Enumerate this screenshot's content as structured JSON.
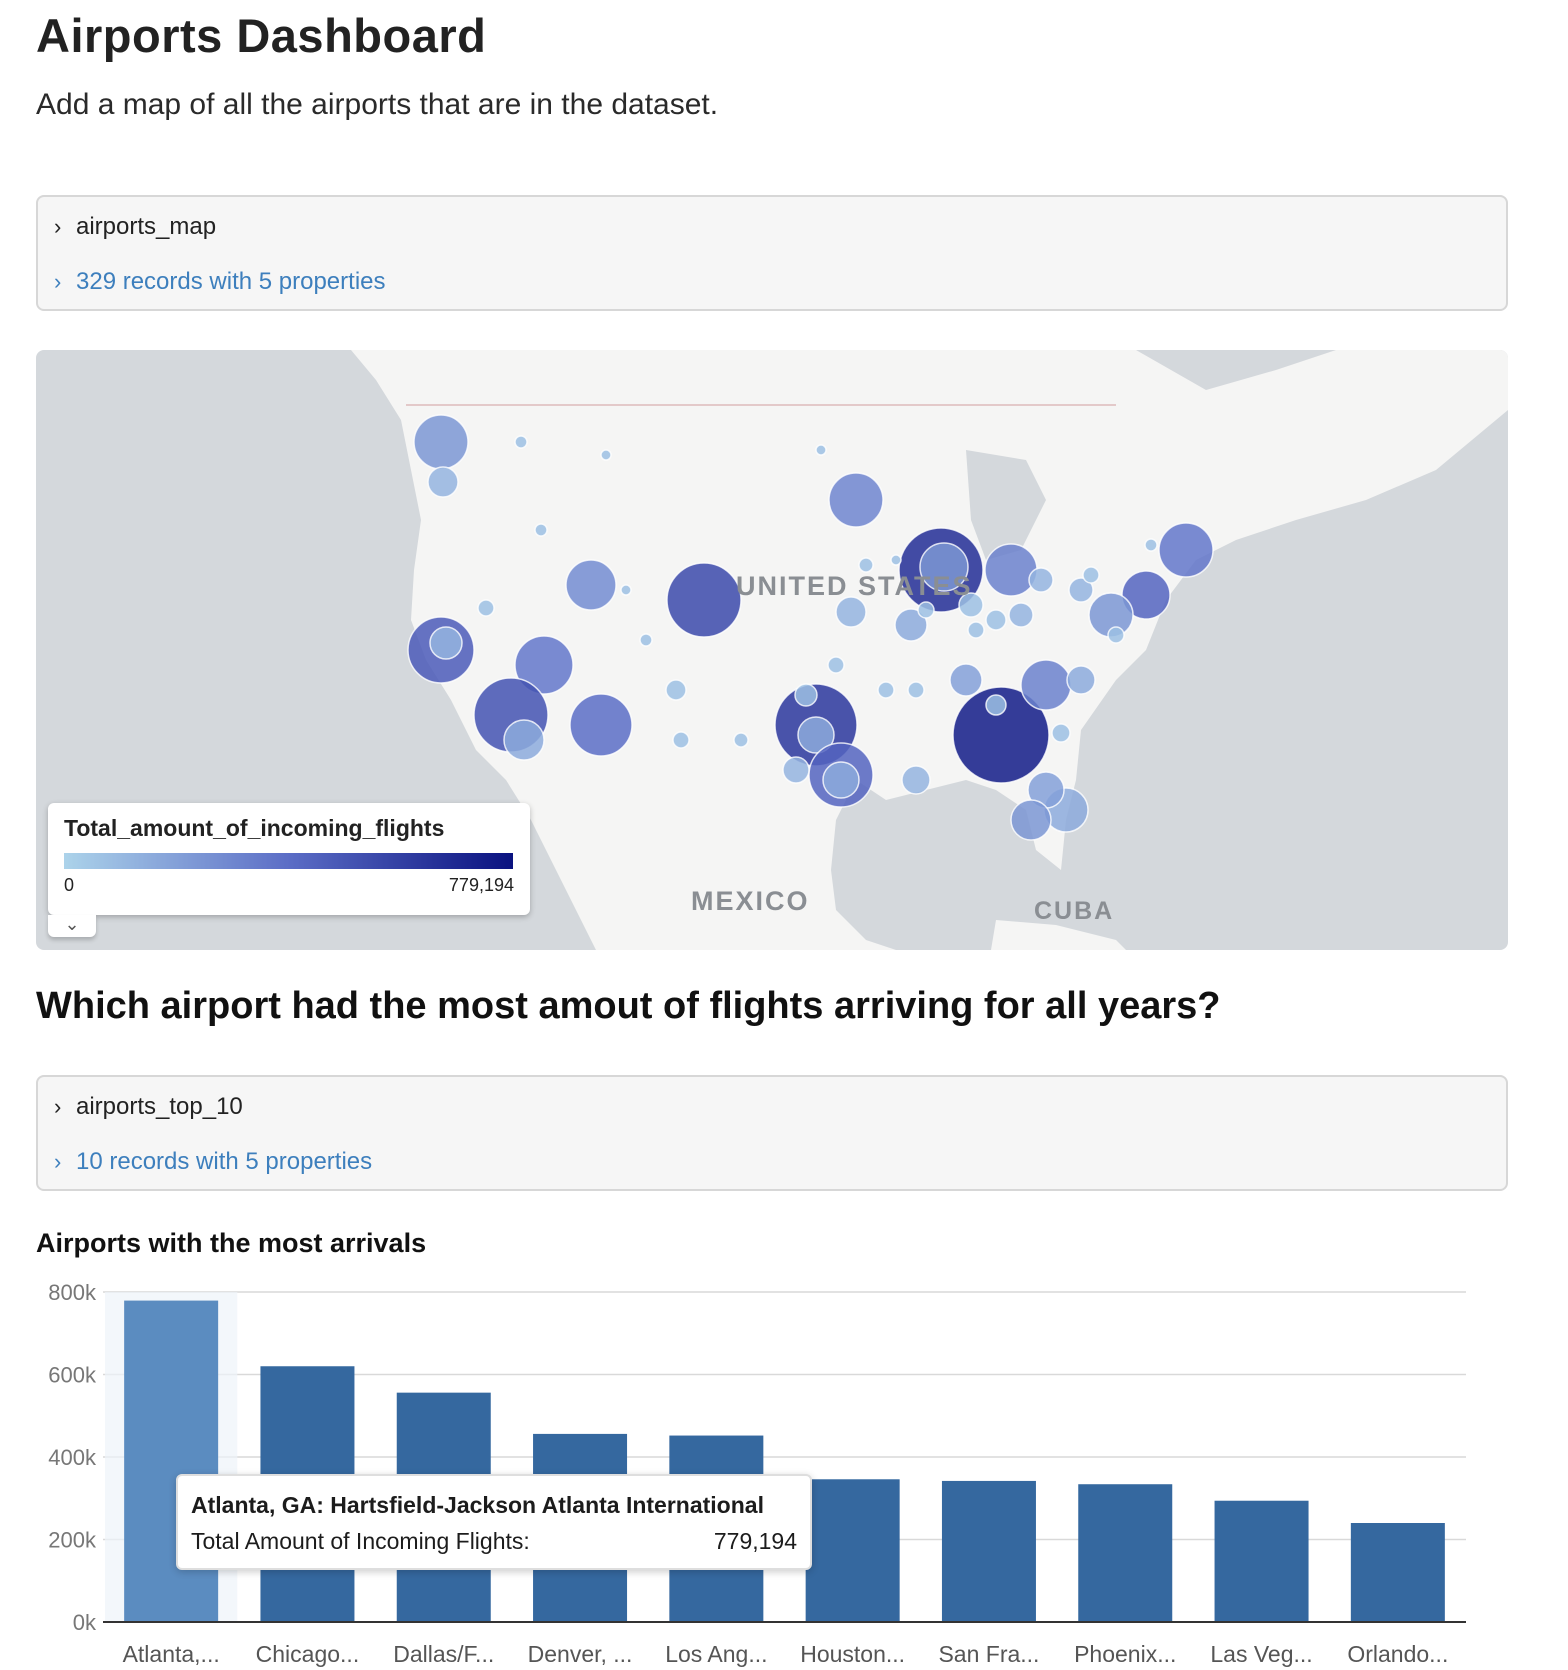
{
  "header": {
    "title": "Airports Dashboard",
    "subtitle": "Add a map of all the airports that are in the dataset."
  },
  "cells": {
    "map_cell": {
      "name": "airports_map",
      "records": "329 records with 5 properties"
    },
    "top10_cell": {
      "name": "airports_top_10",
      "records": "10 records with 5 properties"
    }
  },
  "map": {
    "labels": {
      "country": "UNITED STATES",
      "mexico": "MEXICO",
      "cuba": "CUBA"
    },
    "legend": {
      "title": "Total_amount_of_incoming_flights",
      "min": "0",
      "max": "779,194",
      "colors": {
        "low": "#acd3ea",
        "mid": "#5b6dc6",
        "high": "#0a1280"
      }
    }
  },
  "question": "Which airport had the most amout of flights arriving for all years?",
  "chart_data": {
    "type": "bar",
    "title": "Airports with the most arrivals",
    "categories": [
      "Atlanta,...",
      "Chicago...",
      "Dallas/F...",
      "Denver, ...",
      "Los Ang...",
      "Houston...",
      "San Fra...",
      "Phoenix...",
      "Las Veg...",
      "Orlando..."
    ],
    "values": [
      779194,
      620000,
      556000,
      456000,
      452000,
      346000,
      342000,
      334000,
      294000,
      240000
    ],
    "yticks": [
      "0k",
      "200k",
      "400k",
      "600k",
      "800k"
    ],
    "ylim": [
      0,
      800000
    ],
    "grid": true,
    "colors": {
      "bar": "#35689f",
      "highlight": "#5b8cc0"
    },
    "highlighted_index": 0
  },
  "tooltip": {
    "name": "Atlanta, GA: Hartsfield-Jackson Atlanta International",
    "label": "Total Amount of Incoming Flights:",
    "value": "779,194"
  }
}
